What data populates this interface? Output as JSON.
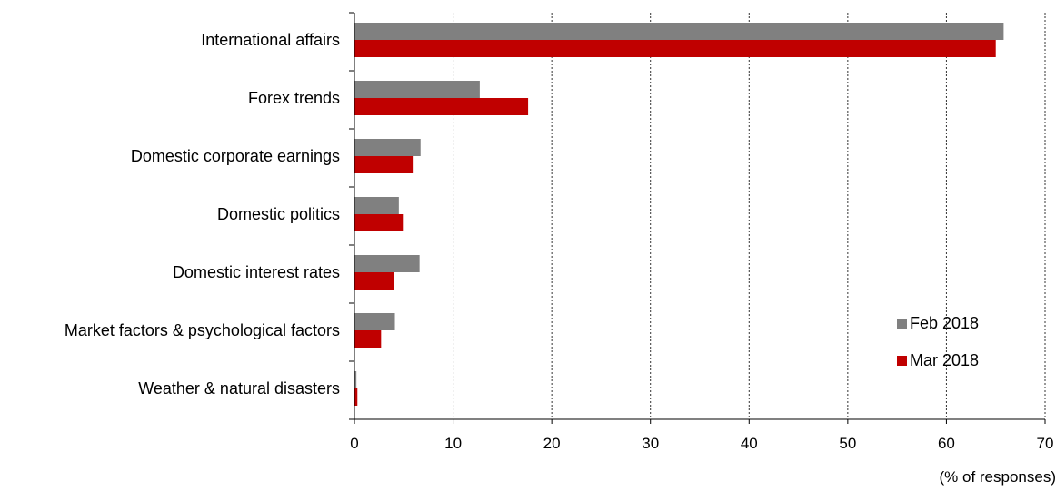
{
  "chart_data": {
    "type": "bar",
    "orientation": "horizontal",
    "categories": [
      "International affairs",
      "Forex trends",
      "Domestic corporate earnings",
      "Domestic politics",
      "Domestic interest rates",
      "Market factors & psychological factors",
      "Weather & natural disasters"
    ],
    "series": [
      {
        "name": "Feb 2018",
        "color": "#808080",
        "values": [
          65.8,
          12.7,
          6.7,
          4.5,
          6.6,
          4.1,
          0.2
        ]
      },
      {
        "name": "Mar 2018",
        "color": "#c00000",
        "values": [
          65.0,
          17.6,
          6.0,
          5.0,
          4.0,
          2.7,
          0.3
        ]
      }
    ],
    "xlim": [
      0,
      70
    ],
    "xticks": [
      0,
      10,
      20,
      30,
      40,
      50,
      60,
      70
    ],
    "xunit": "(% of responses)",
    "grid": "vertical-dotted",
    "legend_position": "bottom-right"
  }
}
